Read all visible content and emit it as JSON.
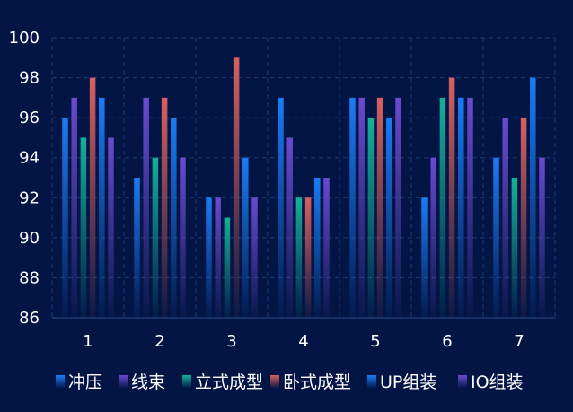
{
  "chart_data": {
    "type": "bar",
    "categories": [
      "1",
      "2",
      "3",
      "4",
      "5",
      "6",
      "7"
    ],
    "ylim": [
      86,
      100
    ],
    "yticks": [
      86,
      88,
      90,
      92,
      94,
      96,
      98,
      100
    ],
    "series": [
      {
        "name": "冲压",
        "color": "#1a7cf5",
        "values": [
          96,
          93,
          92,
          97,
          97,
          92,
          94
        ]
      },
      {
        "name": "线束",
        "color": "#6a4ad0",
        "values": [
          97,
          97,
          92,
          95,
          97,
          94,
          96
        ]
      },
      {
        "name": "立式成型",
        "color": "#15b09a",
        "values": [
          95,
          94,
          91,
          92,
          96,
          97,
          93
        ]
      },
      {
        "name": "卧式成型",
        "color": "#d9605e",
        "values": [
          98,
          97,
          99,
          92,
          97,
          98,
          96
        ]
      },
      {
        "name": "UP组装",
        "color": "#1a7cf5",
        "values": [
          97,
          96,
          94,
          93,
          96,
          97,
          98
        ]
      },
      {
        "name": "IO组装",
        "color": "#6a4ad0",
        "values": [
          95,
          94,
          92,
          93,
          97,
          97,
          94
        ]
      }
    ],
    "title": "",
    "xlabel": "",
    "ylabel": "",
    "grid": true,
    "legend_position": "bottom"
  }
}
